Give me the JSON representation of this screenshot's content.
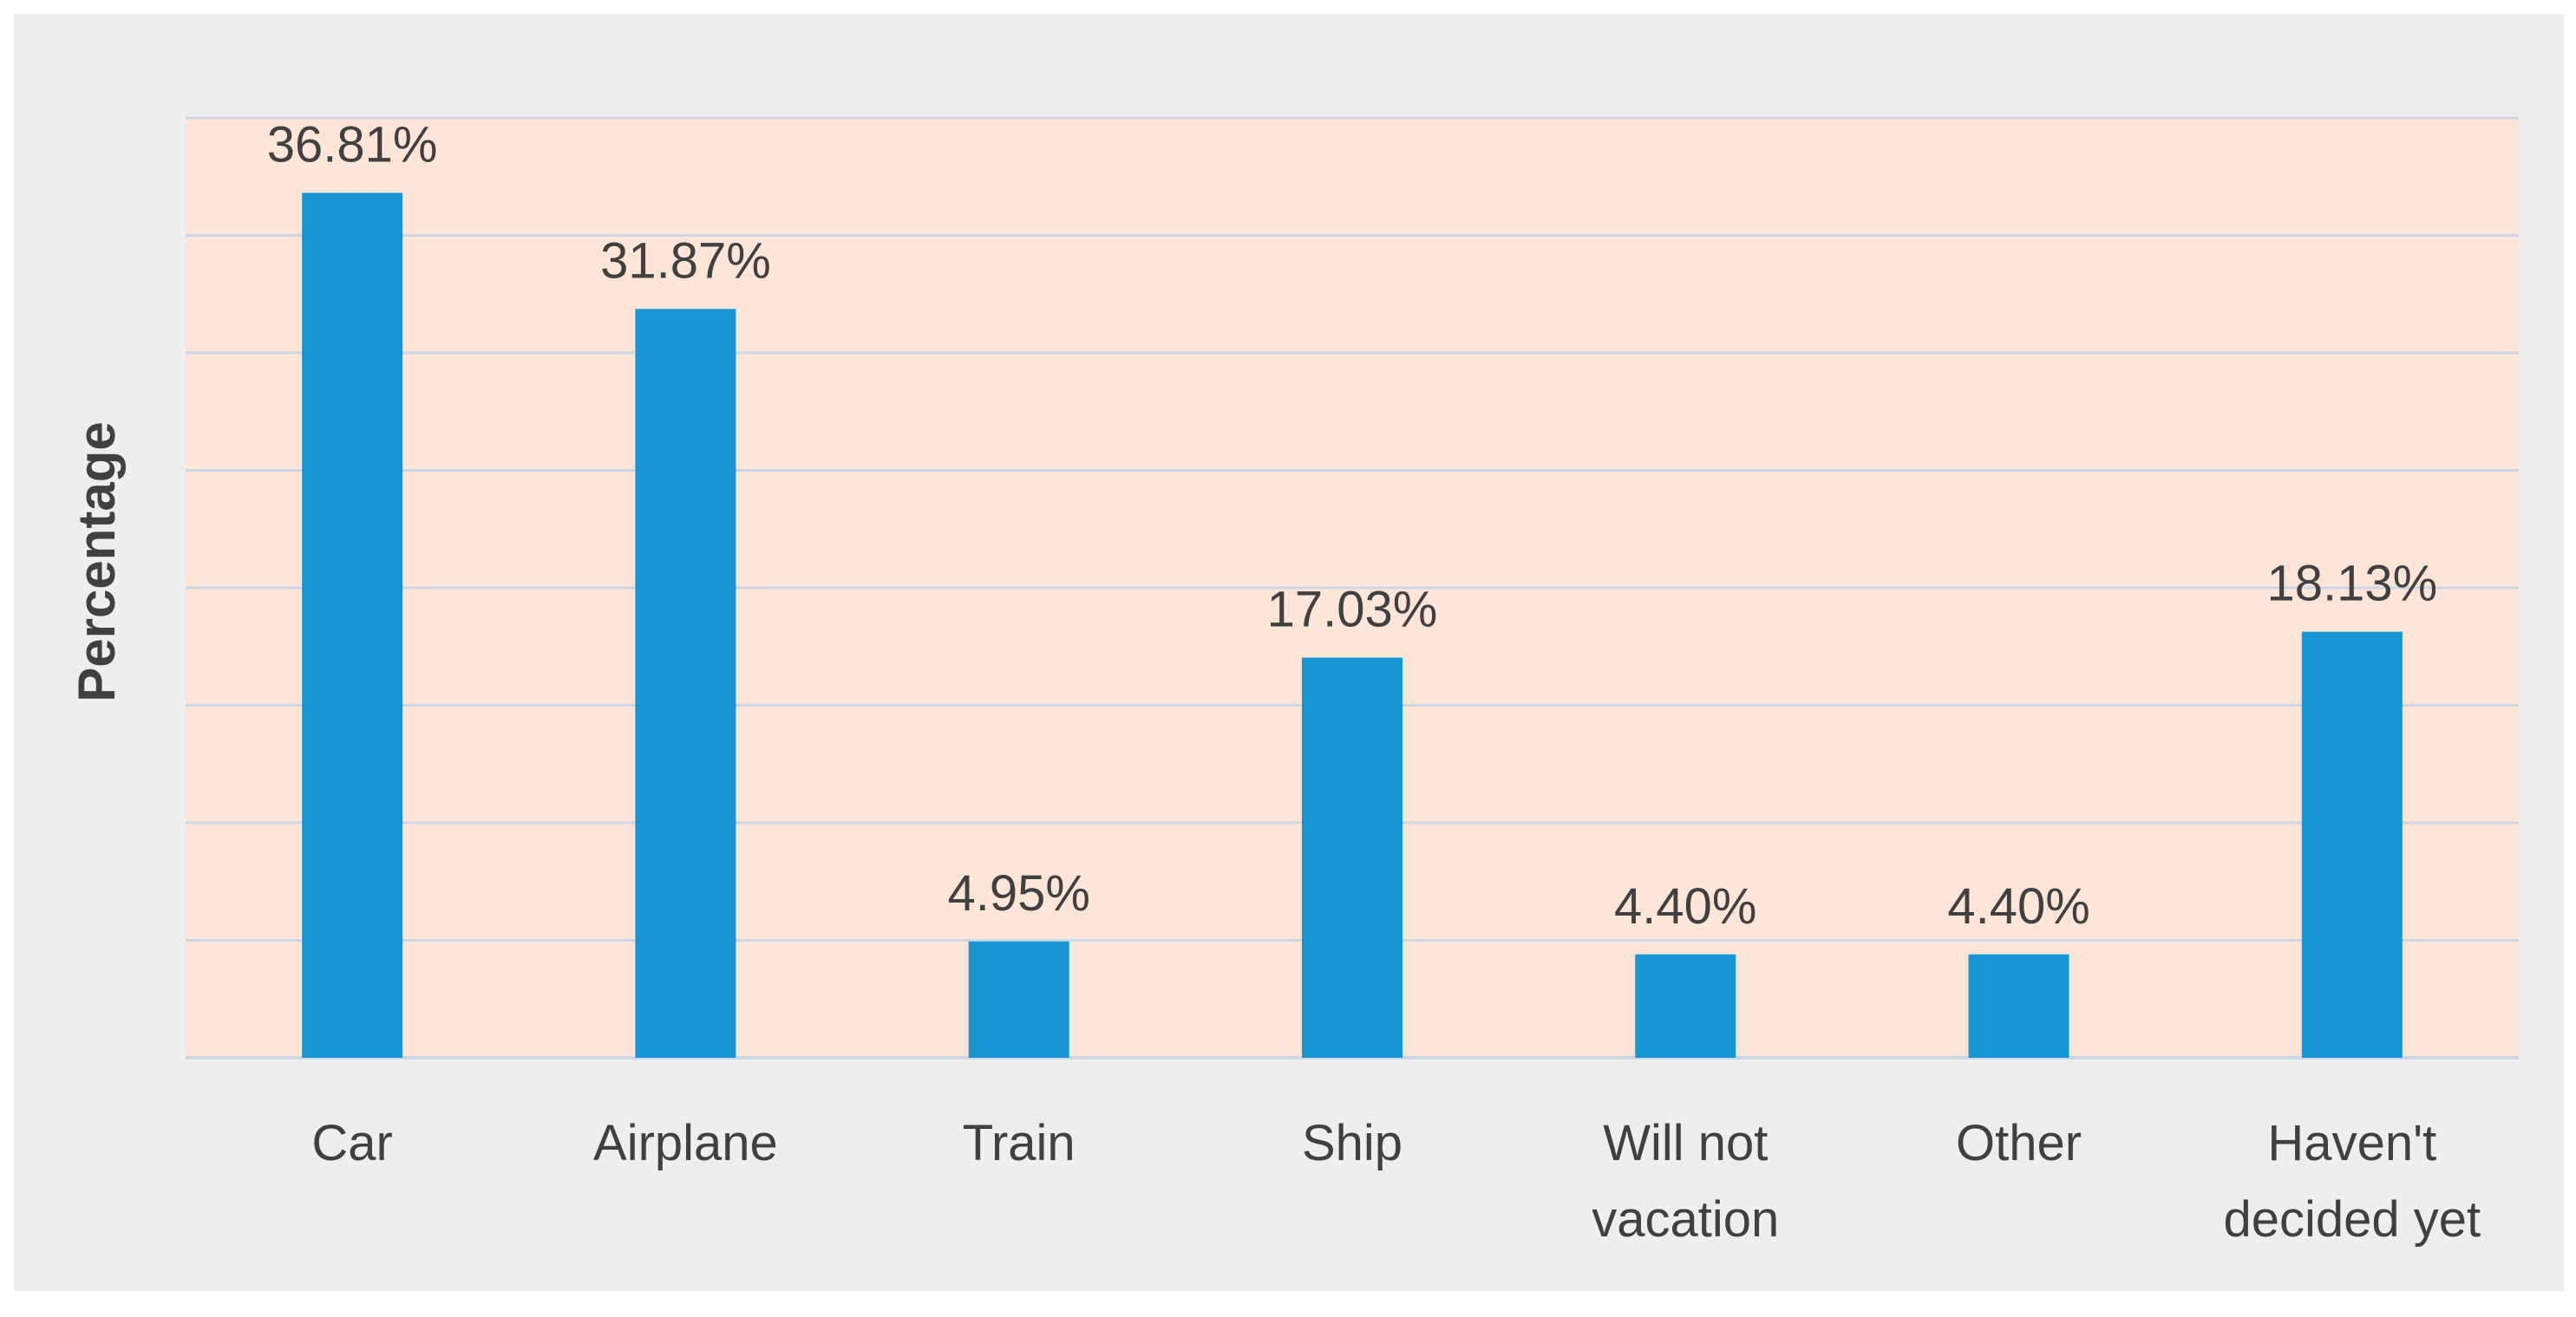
{
  "chart_data": {
    "type": "bar",
    "categories": [
      [
        "Car"
      ],
      [
        "Airplane"
      ],
      [
        "Train"
      ],
      [
        "Ship"
      ],
      [
        "Will not",
        "vacation"
      ],
      [
        "Other"
      ],
      [
        "Haven't",
        "decided yet"
      ]
    ],
    "values": [
      36.81,
      31.87,
      4.95,
      17.03,
      4.4,
      4.4,
      18.13
    ],
    "data_labels": [
      "36.81%",
      "31.87%",
      "4.95%",
      "17.03%",
      "4.40%",
      "4.40%",
      "18.13%"
    ],
    "title": "",
    "xlabel": "",
    "ylabel": "Percentage",
    "ylim": [
      0,
      40
    ],
    "y_tick_step": 5,
    "y_tick_labels_shown": false,
    "grid": true,
    "legend": "none",
    "colors": {
      "bar": "#1796d6",
      "plot_background": "#fde5d8",
      "chart_background": "#eeeeee",
      "gridline": "#cdd6e3",
      "text": "#404040"
    }
  }
}
